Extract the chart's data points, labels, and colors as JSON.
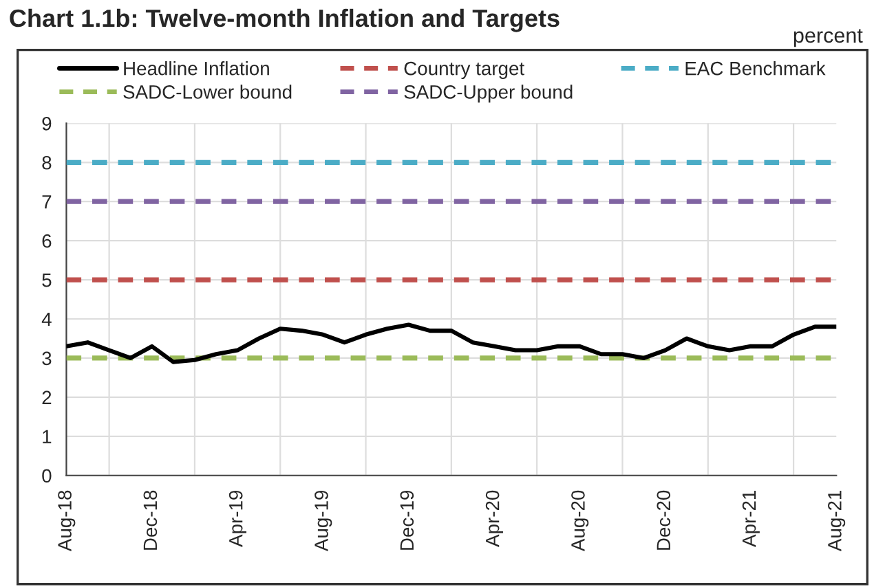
{
  "chart_data": {
    "type": "line",
    "title": "Chart 1.1b: Twelve-month Inflation and Targets",
    "ylabel": "percent",
    "categories": [
      "Aug-18",
      null,
      null,
      null,
      "Dec-18",
      null,
      null,
      null,
      "Apr-19",
      null,
      null,
      null,
      "Aug-19",
      null,
      null,
      null,
      "Dec-19",
      null,
      null,
      null,
      "Apr-20",
      null,
      null,
      null,
      "Aug-20",
      null,
      null,
      null,
      "Dec-20",
      null,
      null,
      null,
      "Apr-21",
      null,
      null,
      null,
      "Aug-21"
    ],
    "series": [
      {
        "name": "Headline Inflation",
        "color": "#000000",
        "line_style": "solid",
        "values": [
          3.3,
          3.4,
          3.2,
          3.0,
          3.3,
          2.9,
          2.95,
          3.1,
          3.2,
          3.5,
          3.75,
          3.7,
          3.6,
          3.4,
          3.6,
          3.75,
          3.85,
          3.7,
          3.7,
          3.4,
          3.3,
          3.2,
          3.2,
          3.3,
          3.3,
          3.1,
          3.1,
          3.0,
          3.2,
          3.5,
          3.3,
          3.2,
          3.3,
          3.3,
          3.6,
          3.8,
          3.8
        ]
      },
      {
        "name": "Country target",
        "color": "#c0504d",
        "line_style": "dashed",
        "values": [
          5,
          5,
          5,
          5,
          5,
          5,
          5,
          5,
          5,
          5,
          5,
          5,
          5,
          5,
          5,
          5,
          5,
          5,
          5,
          5,
          5,
          5,
          5,
          5,
          5,
          5,
          5,
          5,
          5,
          5,
          5,
          5,
          5,
          5,
          5,
          5,
          5
        ]
      },
      {
        "name": "EAC Benchmark",
        "color": "#4bacc6",
        "line_style": "dashed",
        "values": [
          8,
          8,
          8,
          8,
          8,
          8,
          8,
          8,
          8,
          8,
          8,
          8,
          8,
          8,
          8,
          8,
          8,
          8,
          8,
          8,
          8,
          8,
          8,
          8,
          8,
          8,
          8,
          8,
          8,
          8,
          8,
          8,
          8,
          8,
          8,
          8,
          8
        ]
      },
      {
        "name": "SADC-Lower bound",
        "color": "#9bbb59",
        "line_style": "dashed",
        "values": [
          3,
          3,
          3,
          3,
          3,
          3,
          3,
          3,
          3,
          3,
          3,
          3,
          3,
          3,
          3,
          3,
          3,
          3,
          3,
          3,
          3,
          3,
          3,
          3,
          3,
          3,
          3,
          3,
          3,
          3,
          3,
          3,
          3,
          3,
          3,
          3,
          3
        ]
      },
      {
        "name": "SADC-Upper bound",
        "color": "#8064a2",
        "line_style": "dashed",
        "values": [
          7,
          7,
          7,
          7,
          7,
          7,
          7,
          7,
          7,
          7,
          7,
          7,
          7,
          7,
          7,
          7,
          7,
          7,
          7,
          7,
          7,
          7,
          7,
          7,
          7,
          7,
          7,
          7,
          7,
          7,
          7,
          7,
          7,
          7,
          7,
          7,
          7
        ]
      }
    ],
    "ylim": [
      0,
      9
    ],
    "yticks": [
      0,
      1,
      2,
      3,
      4,
      5,
      6,
      7,
      8,
      9
    ],
    "grid": true,
    "legend": "top",
    "marker": "none"
  }
}
